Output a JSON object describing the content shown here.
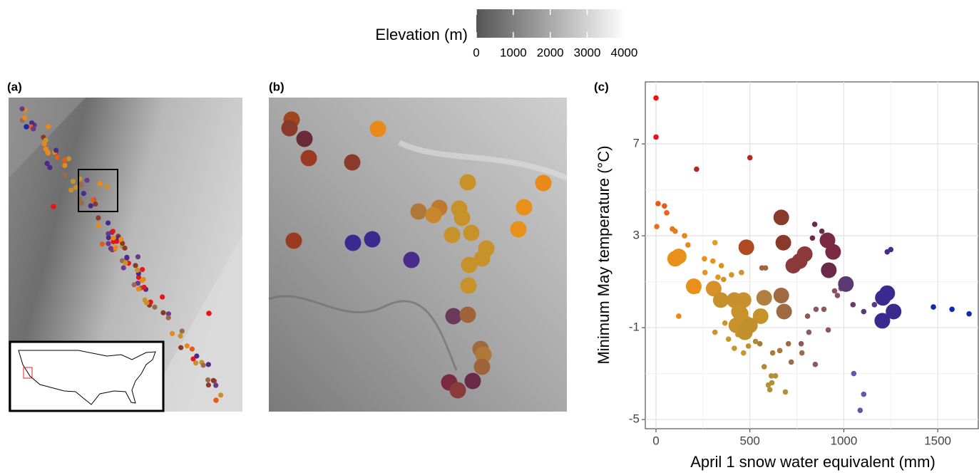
{
  "colorbar": {
    "title": "Elevation (m)",
    "lim": [
      0,
      4050
    ],
    "ticks": [
      0,
      1000,
      2000,
      3000,
      4000
    ]
  },
  "panels": {
    "a": "(a)",
    "b": "(b)"
  },
  "chart_data": {
    "type": "scatter",
    "panel_label": "(c)",
    "x_label": "April 1 snow water equivalent (mm)",
    "y_label": "Minimum May temperature (°C)",
    "xlim": [
      -57,
      1716
    ],
    "ylim": [
      -5.4,
      9.7
    ],
    "xticks": [
      0,
      500,
      1000,
      1500
    ],
    "yticks": [
      -5,
      -1,
      3,
      7
    ],
    "minor_xticks": [
      250,
      750,
      1250
    ],
    "minor_yticks": [
      -3,
      1,
      5
    ],
    "grid": true,
    "x": [
      0,
      0,
      500,
      216,
      11,
      45,
      57,
      4,
      87,
      102,
      152,
      170,
      258,
      314,
      303,
      261,
      348,
      360,
      564,
      583,
      845,
      883,
      833,
      1231,
      1250,
      985,
      966,
      951,
      1049,
      1106,
      1163,
      1477,
      1576,
      1667,
      1053,
      1106,
      1087,
      852,
      894,
      807,
      814,
      917,
      773,
      705,
      777,
      848,
      720,
      621,
      659,
      553,
      530,
      576,
      614,
      636,
      617,
      606,
      689,
      598,
      314,
      386,
      417,
      466,
      492,
      470,
      436,
      121,
      367,
      220,
      330,
      402,
      455,
      667,
      678,
      481,
      913,
      943,
      792,
      765,
      731,
      920,
      1011,
      1231,
      1208,
      1265,
      1205,
      102,
      121,
      201,
      307,
      345,
      417,
      466,
      576,
      667,
      682,
      557,
      451,
      473,
      442,
      428,
      500,
      473
    ],
    "values": [
      9.0,
      7.3,
      6.4,
      5.9,
      4.4,
      4.3,
      4.0,
      3.4,
      3.3,
      3.2,
      3.0,
      2.6,
      2.0,
      2.7,
      1.9,
      1.4,
      1.7,
      1.1,
      1.6,
      1.6,
      3.5,
      3.2,
      2.9,
      2.3,
      2.4,
      0.7,
      0.4,
      0.6,
      0.0,
      -0.3,
      0.0,
      -0.1,
      -0.2,
      -0.4,
      -3.0,
      -3.9,
      -4.6,
      -0.2,
      -0.2,
      -0.5,
      -1.2,
      -1.1,
      -1.7,
      -1.7,
      -2.1,
      -2.6,
      -2.5,
      -2.1,
      -2.0,
      -1.7,
      -1.6,
      -2.7,
      -3.1,
      -3.1,
      -3.4,
      -3.7,
      -3.8,
      -3.5,
      -1.2,
      -1.5,
      -1.9,
      -2.1,
      -1.8,
      -1.4,
      -1.3,
      -0.5,
      -0.8,
      0.6,
      1.2,
      1.3,
      1.4,
      3.8,
      2.7,
      2.5,
      2.8,
      2.3,
      2.2,
      1.9,
      1.7,
      1.5,
      0.9,
      0.5,
      0.3,
      -0.3,
      -0.7,
      2.0,
      2.1,
      0.8,
      0.7,
      0.2,
      0.2,
      0.2,
      0.3,
      0.4,
      -0.3,
      -0.5,
      -0.4,
      -0.8,
      -0.3,
      -0.9,
      -0.9,
      -1.2
    ],
    "colors": [
      "#e8141a",
      "#e8141a",
      "#b02a22",
      "#b02a22",
      "#e85a18",
      "#e85a18",
      "#e86418",
      "#e8701a",
      "#e8781a",
      "#e87a1a",
      "#e8841a",
      "#e8881a",
      "#e8901a",
      "#e89a1e",
      "#e8921c",
      "#e89420",
      "#d89224",
      "#d09426",
      "#a0643a",
      "#a0643a",
      "#6a2a48",
      "#6a2a48",
      "#6a2a48",
      "#4a2a8a",
      "#4a2a8a",
      "#8a5060",
      "#8a5060",
      "#8a5060",
      "#6a3a6a",
      "#5a3a7a",
      "#5a3a7a",
      "#1428b0",
      "#1428b0",
      "#1428b0",
      "#5a5aa8",
      "#5a5aa8",
      "#5a5aa8",
      "#8a5a5a",
      "#8a5a5a",
      "#8a5a5a",
      "#8a5a5a",
      "#8a5a5a",
      "#8a5a5a",
      "#9a6a4a",
      "#9a6a4a",
      "#8a5a5a",
      "#9a6a4a",
      "#a87a3a",
      "#a87a3a",
      "#a87a3a",
      "#b0883a",
      "#b0883a",
      "#b09038",
      "#b09038",
      "#b09038",
      "#b09038",
      "#b09038",
      "#b09038",
      "#c8962a",
      "#c8962a",
      "#c8962a",
      "#c8962a",
      "#c0902c",
      "#c8962a",
      "#c8962a",
      "#e8881a",
      "#d0922a",
      "#e8901a",
      "#e8941c",
      "#d8922a",
      "#d0922a",
      "#8a3a2a",
      "#8a3a2a",
      "#b04a22",
      "#7a2a40",
      "#7a2a40",
      "#8a3a3a",
      "#8a3a3a",
      "#8a3a3a",
      "#6a2a48",
      "#5a3a70",
      "#3a2a90",
      "#3a2a90",
      "#3a2a90",
      "#3a2a90",
      "#e8901a",
      "#e8901a",
      "#e8901a",
      "#d8902a",
      "#c8902c",
      "#c8902c",
      "#c8902c",
      "#b08040",
      "#a06a40",
      "#a06a40",
      "#c8922a",
      "#c8922a",
      "#c8922a",
      "#c8922a",
      "#c8922a",
      "#c0902c",
      "#c0902c"
    ],
    "large": [
      false,
      false,
      false,
      false,
      false,
      false,
      false,
      false,
      false,
      false,
      false,
      false,
      false,
      false,
      false,
      false,
      false,
      false,
      false,
      false,
      false,
      false,
      false,
      false,
      false,
      false,
      false,
      false,
      false,
      false,
      false,
      false,
      false,
      false,
      false,
      false,
      false,
      false,
      false,
      false,
      false,
      false,
      false,
      false,
      false,
      false,
      false,
      false,
      false,
      false,
      false,
      false,
      false,
      false,
      false,
      false,
      false,
      false,
      false,
      false,
      false,
      false,
      false,
      false,
      false,
      false,
      false,
      false,
      false,
      false,
      false,
      true,
      true,
      true,
      true,
      true,
      true,
      true,
      true,
      true,
      true,
      true,
      true,
      true,
      true,
      true,
      true,
      true,
      true,
      true,
      true,
      true,
      true,
      true,
      true,
      true,
      true,
      true,
      true,
      true,
      true,
      true
    ]
  }
}
